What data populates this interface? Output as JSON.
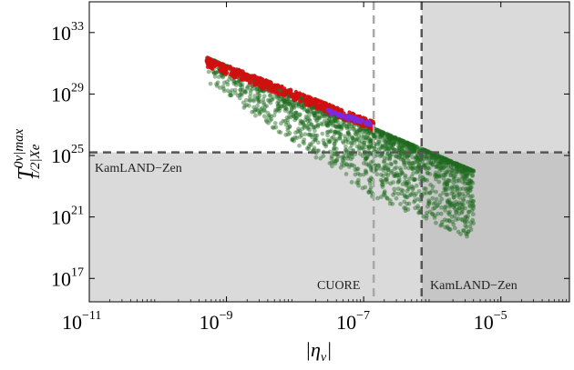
{
  "chart_data": {
    "type": "scatter",
    "xlabel": {
      "base": "|η",
      "sub": "ν",
      "tail": "|"
    },
    "ylabel": {
      "base": "T",
      "sup": "0ν|max",
      "sub": "1/2|Xe"
    },
    "x_scale": "log",
    "y_scale": "log",
    "xlim": [
      1e-11,
      0.0001
    ],
    "ylim": [
      3000000000000000.0,
      1e+35
    ],
    "x_ticks": [
      {
        "base": "10",
        "exp": "−11",
        "value": 1e-11
      },
      {
        "base": "10",
        "exp": "−9",
        "value": 1e-09
      },
      {
        "base": "10",
        "exp": "−7",
        "value": 1e-07
      },
      {
        "base": "10",
        "exp": "−5",
        "value": 1e-05
      }
    ],
    "y_ticks": [
      {
        "base": "10",
        "exp": "17",
        "value": 1e+17
      },
      {
        "base": "10",
        "exp": "21",
        "value": 1e+21
      },
      {
        "base": "10",
        "exp": "25",
        "value": 1e+25
      },
      {
        "base": "10",
        "exp": "29",
        "value": 1e+29
      },
      {
        "base": "10",
        "exp": "33",
        "value": 1e+33
      }
    ],
    "annotations": {
      "kamland_h": "KamLAND−Zen",
      "cuore": "CUORE",
      "kamland_v": "KamLAND−Zen"
    },
    "excluded_regions": {
      "kamland_halflife_limit": 1.6e+25,
      "kamland_eta_limit": 7e-07,
      "cuore_eta_limit": 1.4e-07
    },
    "series": [
      {
        "color": "#1f6b1f",
        "band": {
          "x_min": 5e-10,
          "x_max": 4e-06,
          "upper_at_xmin": 2.5e+31,
          "upper_at_xmax": 1e+24,
          "spread_decades": 4.5
        }
      },
      {
        "color": "#d01010",
        "band": {
          "x_min": 5e-10,
          "x_max": 1.4e-07,
          "upper_at_xmin": 2.5e+31,
          "upper_at_xmax": 1.6e+27,
          "spread_decades": 0.6
        }
      },
      {
        "color": "#7a2be0",
        "band": {
          "x_min": 3e-08,
          "x_max": 1.3e-07,
          "upper_at_xmin": 1e+28,
          "upper_at_xmax": 1.4e+27,
          "spread_decades": 0.3
        }
      }
    ]
  }
}
